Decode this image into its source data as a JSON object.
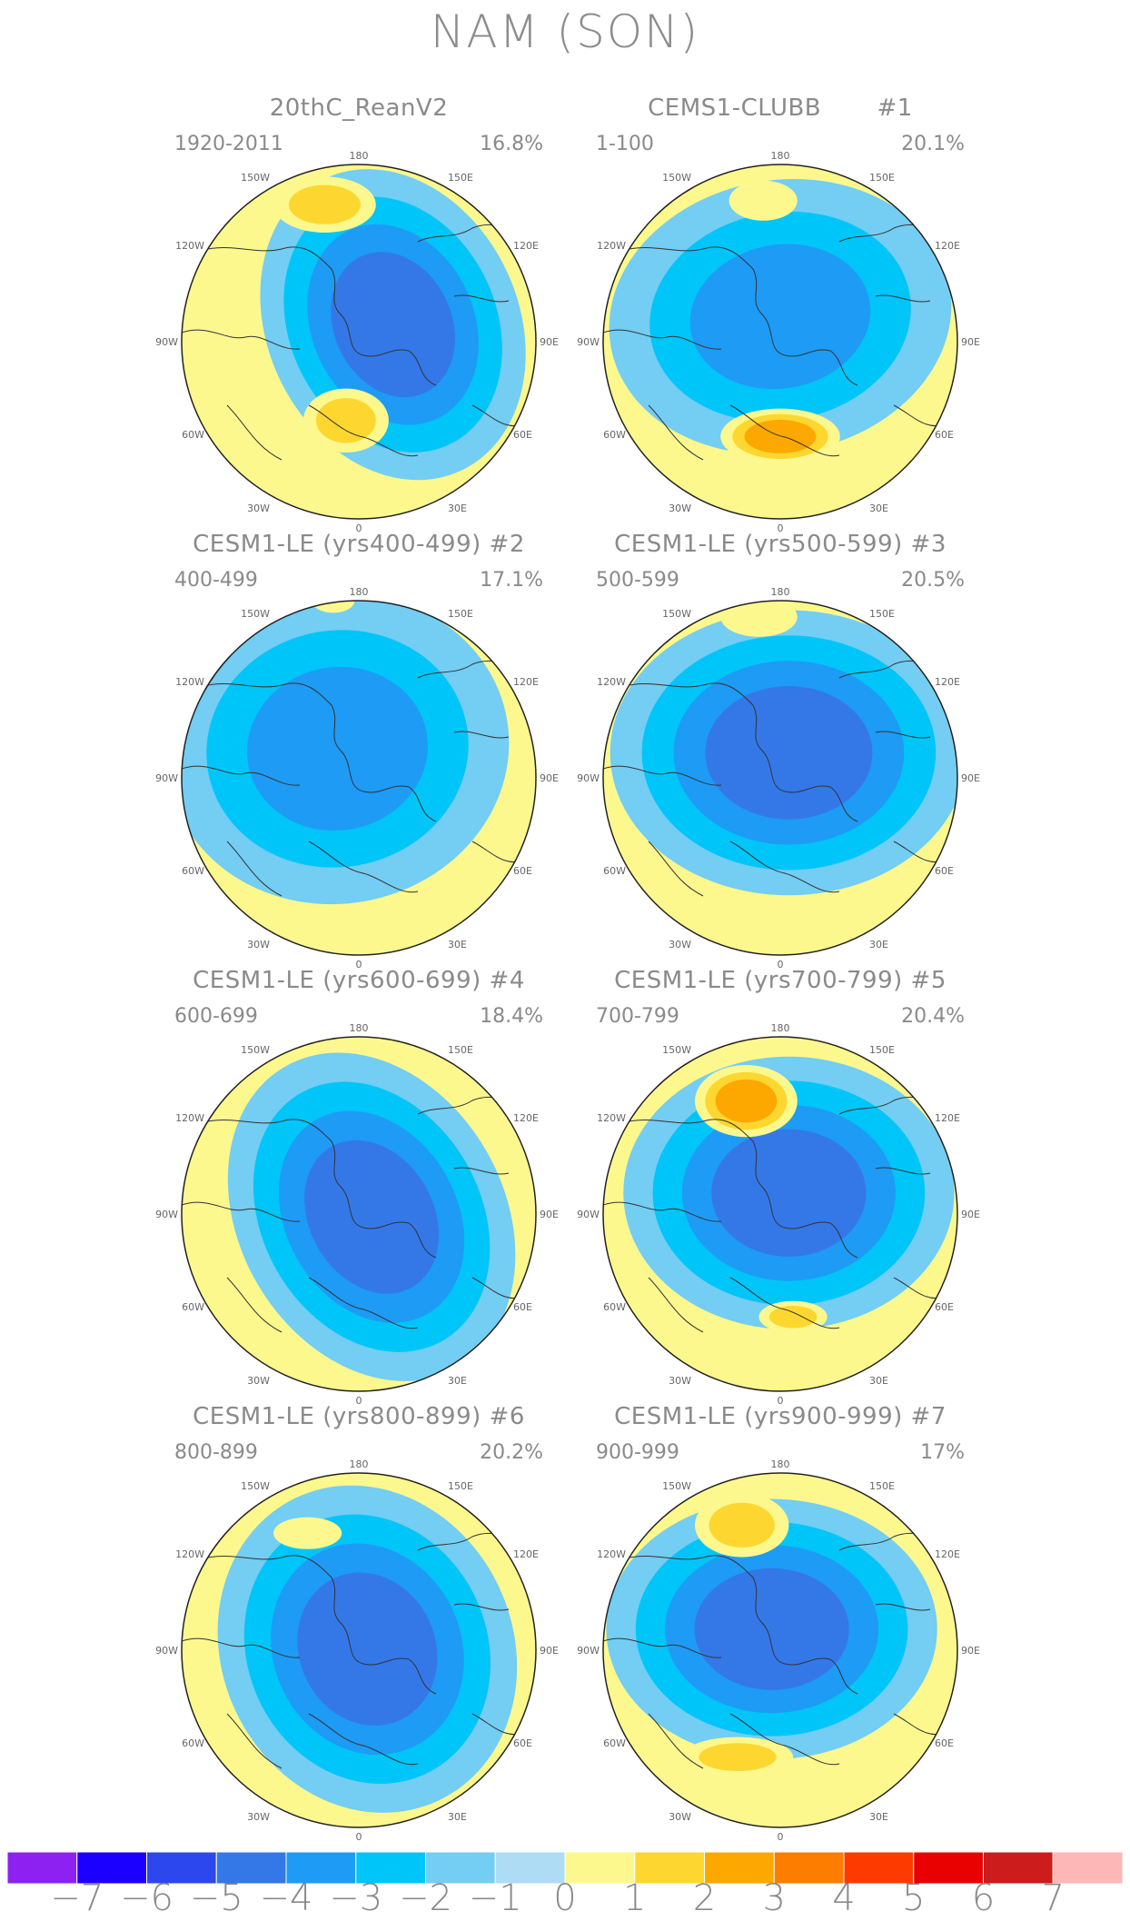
{
  "figure": {
    "title": "NAM (SON)"
  },
  "panels": [
    {
      "title": "20thC_ReanV2",
      "years": "1920-2011",
      "variance": "16.8%"
    },
    {
      "title": "CEMS1-CLUBB       #1",
      "years": "1-100",
      "variance": "20.1%"
    },
    {
      "title": "CESM1-LE (yrs400-499) #2",
      "years": "400-499",
      "variance": "17.1%"
    },
    {
      "title": "CESM1-LE (yrs500-599) #3",
      "years": "500-599",
      "variance": "20.5%"
    },
    {
      "title": "CESM1-LE (yrs600-699) #4",
      "years": "600-699",
      "variance": "18.4%"
    },
    {
      "title": "CESM1-LE (yrs700-799) #5",
      "years": "700-799",
      "variance": "20.4%"
    },
    {
      "title": "CESM1-LE (yrs800-899) #6",
      "years": "800-899",
      "variance": "20.2%"
    },
    {
      "title": "CESM1-LE (yrs900-999) #7",
      "years": "900-999",
      "variance": "17%"
    }
  ],
  "longitude_labels": {
    "top": "180",
    "bottom": "0",
    "left_upper": "150W",
    "right_upper": "150E",
    "left_1": "120W",
    "right_1": "120E",
    "left_2": "90W",
    "right_2": "90E",
    "left_3": "60W",
    "right_3": "60E",
    "left_lower": "30W",
    "right_lower": "30E"
  },
  "colorbar": {
    "ticks": [
      "−7",
      "−6",
      "−5",
      "−4",
      "−3",
      "−2",
      "−1",
      "0",
      "1",
      "2",
      "3",
      "4",
      "5",
      "6",
      "7"
    ],
    "colors": [
      "#8c21f2",
      "#1b00ff",
      "#2c47ee",
      "#3478e8",
      "#1e9bf5",
      "#00c5f9",
      "#74cdf2",
      "#aedcf4",
      "#fcf88e",
      "#fdd72f",
      "#fda800",
      "#fd7d00",
      "#fd3a00",
      "#e90000",
      "#cc1c1c",
      "#fdb7b7"
    ]
  },
  "chart_data": {
    "type": "heatmap",
    "title": "NAM (SON)",
    "projection": "north polar stereographic",
    "legend": "bottom",
    "color_levels": [
      -7,
      -6,
      -5,
      -4,
      -3,
      -2,
      -1,
      0,
      1,
      2,
      3,
      4,
      5,
      6,
      7
    ],
    "panels": [
      {
        "name": "20thC_ReanV2",
        "period": "1920-2011",
        "variance_explained_pct": 16.8,
        "centers": [
          {
            "sign": "negative",
            "level": -4,
            "lon": "90E-60E",
            "lat": "high"
          },
          {
            "sign": "positive",
            "level": 2,
            "lon": "150W",
            "lat": "mid"
          },
          {
            "sign": "positive",
            "level": 2,
            "lon": "0-30E",
            "lat": "mid"
          }
        ]
      },
      {
        "name": "CEMS1-CLUBB",
        "period": "1-100",
        "variance_explained_pct": 20.1,
        "centers": [
          {
            "sign": "negative",
            "level": -3,
            "lon": "pole",
            "lat": "high"
          },
          {
            "sign": "positive",
            "level": 1,
            "lon": "180",
            "lat": "mid"
          },
          {
            "sign": "positive",
            "level": 3,
            "lon": "0-30E",
            "lat": "mid"
          }
        ]
      },
      {
        "name": "CESM1-LE (yrs400-499)",
        "period": "400-499",
        "variance_explained_pct": 17.1,
        "centers": [
          {
            "sign": "negative",
            "level": -3,
            "lon": "pole",
            "lat": "high"
          },
          {
            "sign": "positive",
            "level": 1,
            "lon": "180",
            "lat": "mid"
          }
        ]
      },
      {
        "name": "CESM1-LE (yrs500-599)",
        "period": "500-599",
        "variance_explained_pct": 20.5,
        "centers": [
          {
            "sign": "negative",
            "level": -4,
            "lon": "90E",
            "lat": "high"
          },
          {
            "sign": "positive",
            "level": 1,
            "lon": "180",
            "lat": "mid"
          }
        ]
      },
      {
        "name": "CESM1-LE (yrs600-699)",
        "period": "600-699",
        "variance_explained_pct": 18.4,
        "centers": [
          {
            "sign": "negative",
            "level": -4,
            "lon": "90E-60E",
            "lat": "high"
          }
        ]
      },
      {
        "name": "CESM1-LE (yrs700-799)",
        "period": "700-799",
        "variance_explained_pct": 20.4,
        "centers": [
          {
            "sign": "negative",
            "level": -4,
            "lon": "90E",
            "lat": "high"
          },
          {
            "sign": "positive",
            "level": 3,
            "lon": "180",
            "lat": "mid"
          },
          {
            "sign": "positive",
            "level": 2,
            "lon": "30E",
            "lat": "mid"
          }
        ]
      },
      {
        "name": "CESM1-LE (yrs800-899)",
        "period": "800-899",
        "variance_explained_pct": 20.2,
        "centers": [
          {
            "sign": "negative",
            "level": -4,
            "lon": "90E-60E",
            "lat": "high"
          },
          {
            "sign": "positive",
            "level": 1,
            "lon": "180",
            "lat": "mid"
          }
        ]
      },
      {
        "name": "CESM1-LE (yrs900-999)",
        "period": "900-999",
        "variance_explained_pct": 17,
        "centers": [
          {
            "sign": "negative",
            "level": -4,
            "lon": "90E",
            "lat": "high"
          },
          {
            "sign": "positive",
            "level": 2,
            "lon": "180",
            "lat": "mid"
          },
          {
            "sign": "positive",
            "level": 2,
            "lon": "0",
            "lat": "mid"
          }
        ]
      }
    ]
  }
}
